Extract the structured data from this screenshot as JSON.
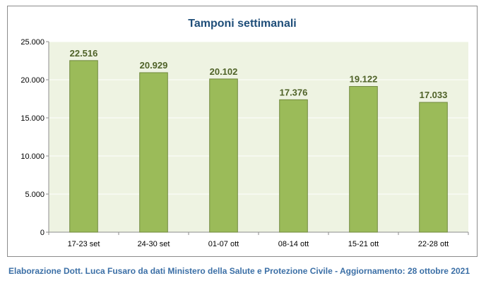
{
  "chart_data": {
    "type": "bar",
    "title": "Tamponi settimanali",
    "xlabel": "",
    "ylabel": "",
    "categories": [
      "17-23 set",
      "24-30 set",
      "01-07 ott",
      "08-14 ott",
      "15-21 ott",
      "22-28 ott"
    ],
    "values": [
      22516,
      20929,
      20102,
      17376,
      19122,
      17033
    ],
    "value_labels": [
      "22.516",
      "20.929",
      "20.102",
      "17.376",
      "19.122",
      "17.033"
    ],
    "ylim": [
      0,
      25000
    ],
    "yticks": [
      0,
      5000,
      10000,
      15000,
      20000,
      25000
    ],
    "ytick_labels": [
      "0",
      "5.000",
      "10.000",
      "15.000",
      "20.000",
      "25.000"
    ],
    "grid": true,
    "legend": "none",
    "colors": {
      "bar_fill": "#9bbb59",
      "bar_stroke": "#71893f",
      "plot_bg": "#eef3e2",
      "value_label": "#4f6228",
      "title": "#1f4e79",
      "gridline": "#ffffff",
      "axis": "#8c8c8c"
    }
  },
  "footer": {
    "text": "Elaborazione Dott. Luca Fusaro da dati Ministero della Salute e Protezione Civile - Aggiornamento: 28 ottobre 2021",
    "color": "#3b6fa6"
  }
}
